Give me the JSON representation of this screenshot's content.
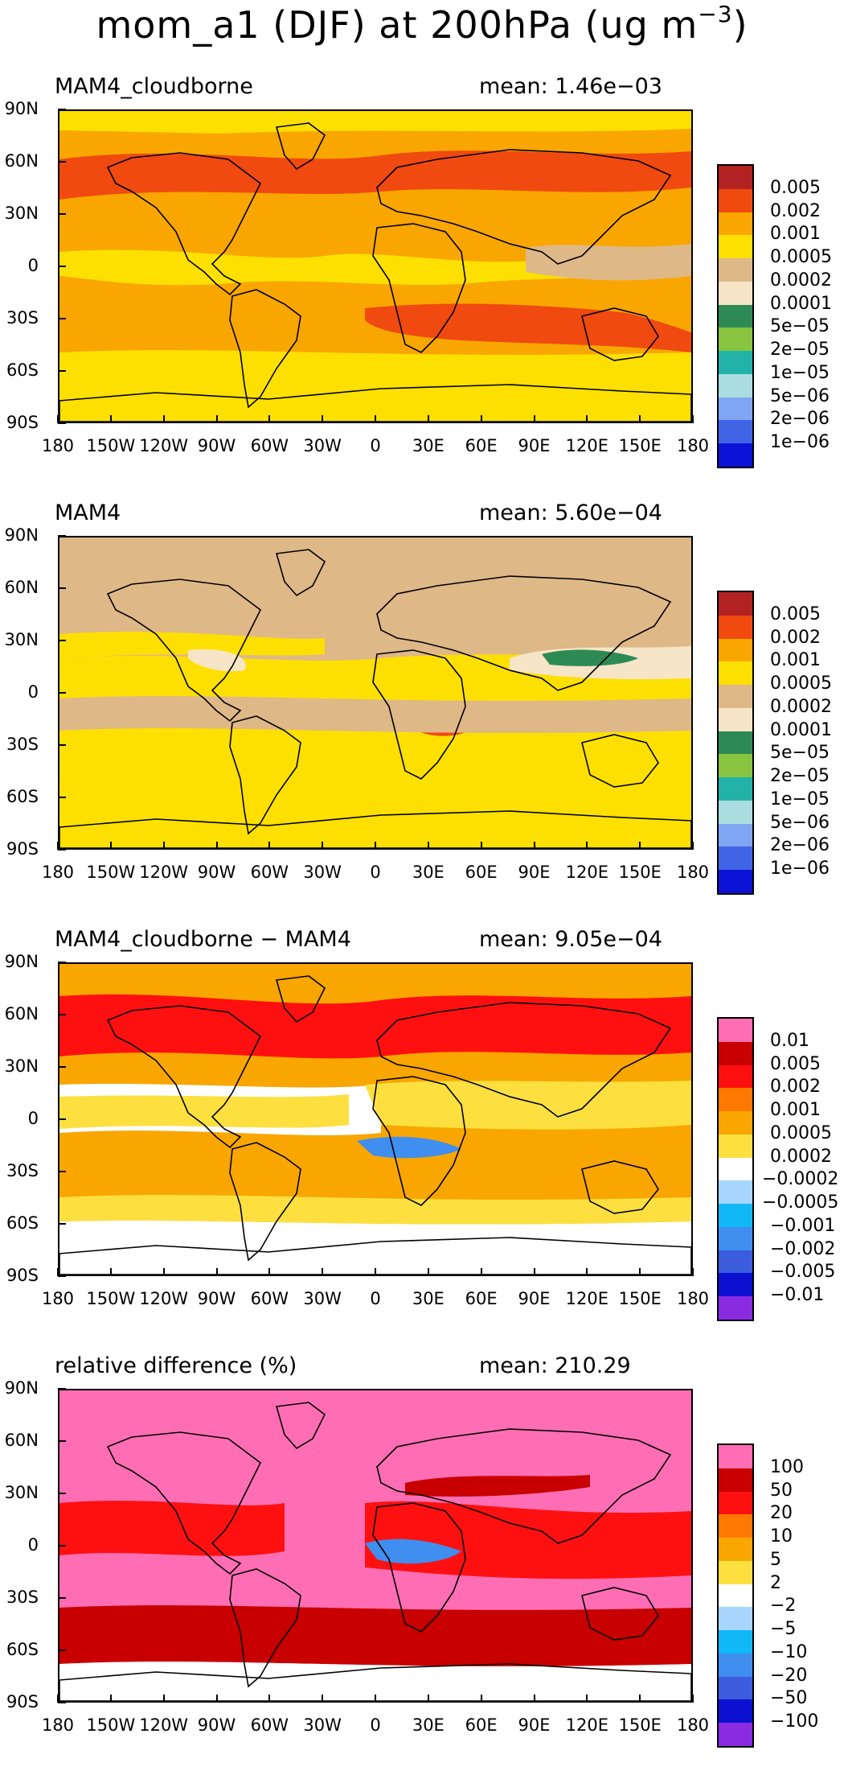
{
  "title_main": "mom_a1 (DJF) at 200hPa (ug m",
  "title_sup": "−3",
  "title_close": ")",
  "lat_labels": [
    "90N",
    "60N",
    "30N",
    "0",
    "30S",
    "60S",
    "90S"
  ],
  "lon_labels": [
    "180",
    "150W",
    "120W",
    "90W",
    "60W",
    "30W",
    "0",
    "30E",
    "60E",
    "90E",
    "120E",
    "150E",
    "180"
  ],
  "panels": [
    {
      "name": "MAM4_cloudborne",
      "mean": "mean: 1.46e−03",
      "background": "#f9a600",
      "legend": {
        "labels": [
          "0.005",
          "0.002",
          "0.001",
          "0.0005",
          "0.0002",
          "0.0001",
          "5e−05",
          "2e−05",
          "1e−05",
          "5e−06",
          "2e−06",
          "1e−06"
        ],
        "colors": [
          "#b22222",
          "#f04a10",
          "#f9a600",
          "#fde000",
          "#dfb888",
          "#f6e5c6",
          "#2e8a55",
          "#88c440",
          "#22b2a8",
          "#aadde0",
          "#7ea6f2",
          "#4164e6",
          "#0c13d6"
        ]
      }
    },
    {
      "name": "MAM4",
      "mean": "mean: 5.60e−04",
      "background": "#dfb888",
      "legend": {
        "labels": [
          "0.005",
          "0.002",
          "0.001",
          "0.0005",
          "0.0002",
          "0.0001",
          "5e−05",
          "2e−05",
          "1e−05",
          "5e−06",
          "2e−06",
          "1e−06"
        ],
        "colors": [
          "#b22222",
          "#f04a10",
          "#f9a600",
          "#fde000",
          "#dfb888",
          "#f6e5c6",
          "#2e8a55",
          "#88c440",
          "#22b2a8",
          "#aadde0",
          "#7ea6f2",
          "#4164e6",
          "#0c13d6"
        ]
      }
    },
    {
      "name": "MAM4_cloudborne − MAM4",
      "mean": "mean: 9.05e−04",
      "background": "#f9a600",
      "legend": {
        "labels": [
          "0.01",
          "0.005",
          "0.002",
          "0.001",
          "0.0005",
          "0.0002",
          "−0.0002",
          "−0.0005",
          "−0.001",
          "−0.002",
          "−0.005",
          "−0.01"
        ],
        "colors": [
          "#ff6eb4",
          "#c80000",
          "#ff1010",
          "#ff7800",
          "#f9a600",
          "#fde040",
          "#ffffff",
          "#a8d6ff",
          "#10b8f8",
          "#3f8ef0",
          "#3c5cde",
          "#0c10d0",
          "#8a2be2"
        ]
      }
    },
    {
      "name": "relative difference (%)",
      "mean": "mean: 210.29",
      "background": "#ff6eb4",
      "legend": {
        "labels": [
          "100",
          "50",
          "20",
          "10",
          "5",
          "2",
          "−2",
          "−5",
          "−10",
          "−20",
          "−50",
          "−100"
        ],
        "colors": [
          "#ff6eb4",
          "#c80000",
          "#ff1010",
          "#ff7800",
          "#f9a600",
          "#fde040",
          "#ffffff",
          "#a8d6ff",
          "#10b8f8",
          "#3f8ef0",
          "#3c5cde",
          "#0c10d0",
          "#8a2be2"
        ]
      }
    }
  ]
}
